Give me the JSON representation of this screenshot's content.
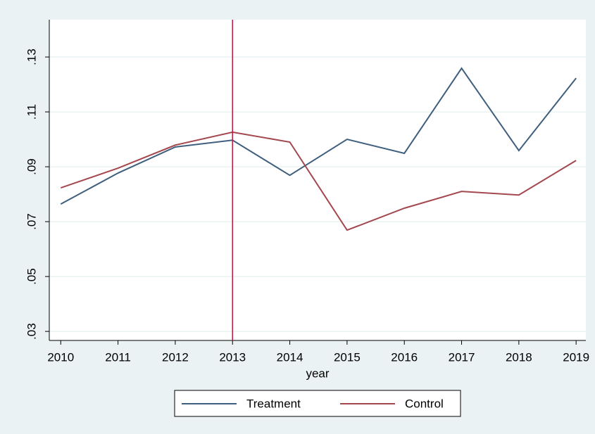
{
  "chart_data": {
    "type": "line",
    "x": [
      2010,
      2011,
      2012,
      2013,
      2014,
      2015,
      2016,
      2017,
      2018,
      2019
    ],
    "series": [
      {
        "name": "Treatment",
        "color": "#3e5f7e",
        "values": [
          0.0764,
          0.0877,
          0.0972,
          0.0997,
          0.0869,
          0.1,
          0.0949,
          0.1259,
          0.0959,
          0.1223
        ]
      },
      {
        "name": "Control",
        "color": "#a3484e",
        "values": [
          0.0823,
          0.0895,
          0.0979,
          0.1026,
          0.099,
          0.0669,
          0.0749,
          0.081,
          0.0797,
          0.0923
        ]
      }
    ],
    "xlabel": "year",
    "xlim": [
      2009.8,
      2019.17
    ],
    "xticks": [
      2010,
      2011,
      2012,
      2013,
      2014,
      2015,
      2016,
      2017,
      2018,
      2019
    ],
    "ylim": [
      0.0267,
      0.1436
    ],
    "yticks": [
      {
        "value": 0.03,
        "label": ".03"
      },
      {
        "value": 0.05,
        "label": ".05"
      },
      {
        "value": 0.07,
        "label": ".07"
      },
      {
        "value": 0.09,
        "label": ".09"
      },
      {
        "value": 0.11,
        "label": ".11"
      },
      {
        "value": 0.13,
        "label": ".13"
      }
    ],
    "xline": 2013,
    "xline_color": "#c0173e",
    "grid": true,
    "legend": "bottom"
  }
}
